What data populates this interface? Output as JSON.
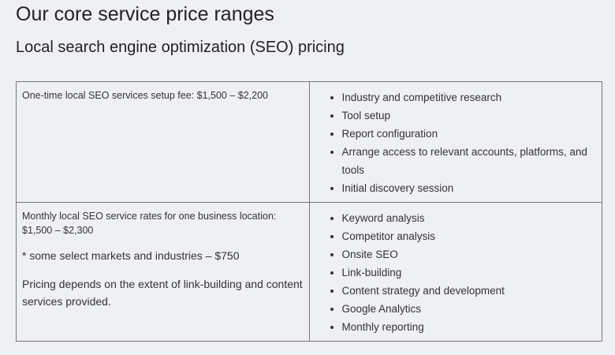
{
  "header": {
    "title": "Our core service price ranges",
    "subtitle": "Local search engine optimization (SEO) pricing"
  },
  "table": {
    "rows": [
      {
        "description": [
          "One-time local SEO services setup fee: $1,500 – $2,200"
        ],
        "items": [
          "Industry and competitive research",
          "Tool setup",
          "Report configuration",
          "Arrange access to relevant accounts, platforms, and tools",
          "Initial discovery session"
        ]
      },
      {
        "description": [
          "Monthly local SEO service rates for one business location: $1,500 – $2,300",
          "* some select markets and industries – $750",
          "Pricing depends on the extent of link-building and content services provided."
        ],
        "items": [
          "Keyword analysis",
          "Competitor analysis",
          "Onsite SEO",
          "Link-building",
          "Content strategy and development",
          "Google Analytics",
          "Monthly reporting"
        ]
      }
    ]
  }
}
